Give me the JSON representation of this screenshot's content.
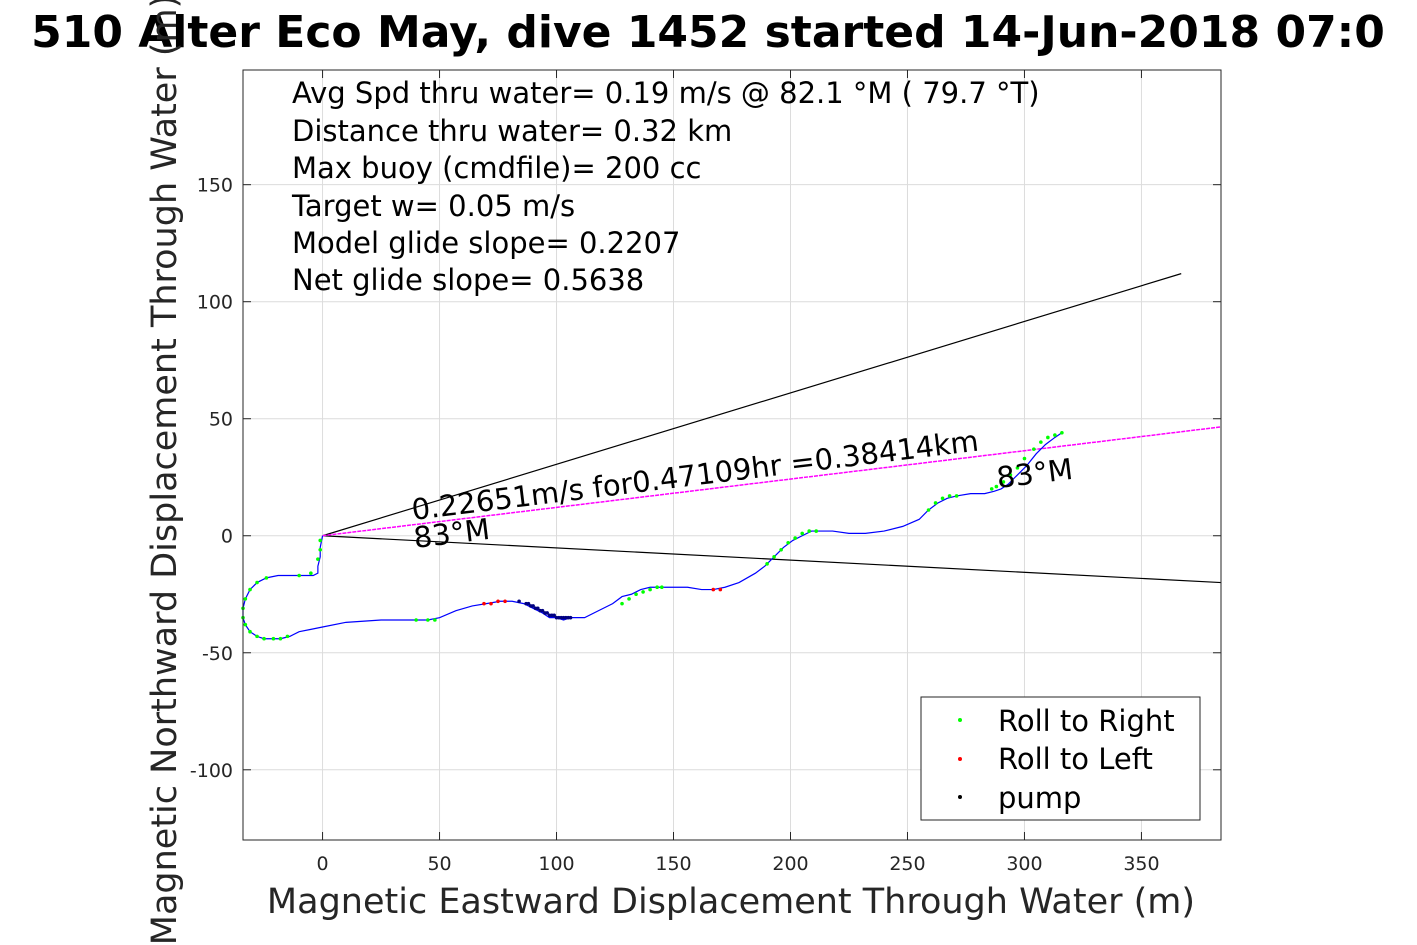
{
  "chart_data": {
    "type": "line",
    "title": "510 Alter Eco May, dive 1452 started 14-Jun-2018 07:0",
    "xlabel": "Magnetic Eastward Displacement Through Water (m)",
    "ylabel": "Magnetic Northward Displacement Through Water (m)",
    "xlim": [
      -34,
      384
    ],
    "ylim": [
      -130,
      199
    ],
    "xticks": [
      0,
      50,
      100,
      150,
      200,
      250,
      300,
      350
    ],
    "yticks": [
      -100,
      -50,
      0,
      50,
      100,
      150
    ],
    "xtick_labels": [
      "0",
      "50",
      "100",
      "150",
      "200",
      "250",
      "300",
      "350"
    ],
    "ytick_labels": [
      "-100",
      "-50",
      "0",
      "50",
      "100",
      "150"
    ],
    "grid": true,
    "legend_placement": "bottom-right",
    "info_lines": [
      "Avg Spd thru water=  0.19 m/s @  82.1 °M ( 79.7 °T)",
      "Distance thru water=  0.32 km",
      "Max buoy (cmdfile)= 200 cc",
      "Target w= 0.05 m/s",
      "Model glide slope= 0.2207",
      "Net glide slope= 0.5638"
    ],
    "annotations": {
      "line_label": "0.22651m/s for0.47109hr =0.38414km",
      "heading_near": "83°M",
      "heading_far": "83°M"
    },
    "legend": [
      {
        "label": "Roll to Right",
        "color": "#00ff00"
      },
      {
        "label": "Roll to Left",
        "color": "#ff0000"
      },
      {
        "label": "pump",
        "color": "#000000"
      }
    ],
    "colors": {
      "track": "#0000ff",
      "heading_line": "#ff00ff",
      "cone_lines": "#000000",
      "roll_right": "#00ff00",
      "roll_left": "#ff0000",
      "pump": "#000080"
    },
    "heading_line": {
      "from": [
        0,
        0
      ],
      "to": [
        384,
        46.5
      ]
    },
    "cone_lines": [
      {
        "from": [
          0,
          0
        ],
        "to": [
          367,
          112
        ]
      },
      {
        "from": [
          0,
          0
        ],
        "to": [
          384,
          -20
        ]
      }
    ],
    "track": {
      "x": [
        0,
        -1,
        -1,
        -2,
        -2,
        -4,
        -8,
        -13,
        -19,
        -24,
        -28,
        -31,
        -33,
        -34,
        -34,
        -33,
        -31,
        -28,
        -25,
        -22,
        -18,
        -14,
        -10,
        -5,
        0,
        10,
        25,
        38,
        45,
        50,
        57,
        64,
        70,
        76,
        81,
        86,
        90,
        94,
        97,
        100,
        103,
        106,
        112,
        118,
        124,
        128,
        132,
        136,
        140,
        145,
        150,
        156,
        162,
        167,
        172,
        178,
        185,
        189,
        193,
        197,
        201,
        205,
        209,
        213,
        218,
        225,
        232,
        240,
        248,
        255,
        259,
        263,
        267,
        271,
        277,
        283,
        287,
        290,
        293,
        297,
        301,
        305,
        309,
        313,
        316
      ],
      "y": [
        0,
        -5,
        -9,
        -13,
        -16,
        -17,
        -17,
        -17,
        -17,
        -18,
        -20,
        -23,
        -27,
        -31,
        -35,
        -38,
        -41,
        -43,
        -44,
        -44,
        -44,
        -43,
        -41,
        -40,
        -39,
        -37,
        -36,
        -36,
        -36,
        -35,
        -32,
        -30,
        -29,
        -28,
        -28,
        -29,
        -31,
        -33,
        -35,
        -35,
        -36,
        -35,
        -35,
        -32,
        -29,
        -26,
        -25,
        -23,
        -22,
        -22,
        -22,
        -22,
        -23,
        -23,
        -22,
        -20,
        -16,
        -13,
        -9,
        -5,
        -2,
        0,
        2,
        2,
        2,
        1,
        1,
        2,
        4,
        7,
        11,
        14,
        16,
        17,
        18,
        18,
        19,
        20,
        22,
        26,
        30,
        35,
        39,
        42,
        44
      ]
    },
    "roll_right_points": {
      "x": [
        -1,
        -1,
        -2,
        -5,
        -10,
        -24,
        -28,
        -31,
        -33,
        -34,
        -34,
        -33,
        -31,
        -28,
        -25,
        -21,
        -18,
        -15,
        40,
        45,
        48,
        128,
        131,
        134,
        137,
        140,
        143,
        145,
        190,
        193,
        196,
        199,
        202,
        205,
        208,
        211,
        259,
        262,
        265,
        268,
        271,
        286,
        288,
        291,
        294,
        297,
        300,
        304,
        307,
        310,
        313,
        316
      ],
      "y": [
        -2,
        -6,
        -10,
        -16,
        -17,
        -18,
        -20,
        -23,
        -27,
        -31,
        -35,
        -38,
        -41,
        -43,
        -44,
        -44,
        -44,
        -43,
        -36,
        -36,
        -36,
        -29,
        -27,
        -25,
        -24,
        -23,
        -22,
        -22,
        -12,
        -9,
        -6,
        -3,
        -1,
        1,
        2,
        2,
        11,
        14,
        16,
        17,
        17,
        20,
        21,
        23,
        26,
        29,
        33,
        37,
        40,
        42,
        43,
        44
      ]
    },
    "roll_left_points": {
      "x": [
        69,
        72,
        75,
        78,
        167,
        170
      ],
      "y": [
        -29,
        -29,
        -28,
        -28,
        -23,
        -23
      ]
    },
    "pump_points": {
      "x": [
        84,
        87,
        88,
        89,
        90,
        91,
        92,
        93,
        94,
        95,
        96,
        97,
        98,
        99,
        100,
        101,
        102,
        103,
        104,
        105,
        106
      ],
      "y": [
        -28,
        -29,
        -29,
        -30,
        -30,
        -31,
        -31,
        -32,
        -32,
        -33,
        -33,
        -34,
        -34,
        -34,
        -35,
        -35,
        -35,
        -35,
        -35,
        -35,
        -35
      ]
    }
  }
}
